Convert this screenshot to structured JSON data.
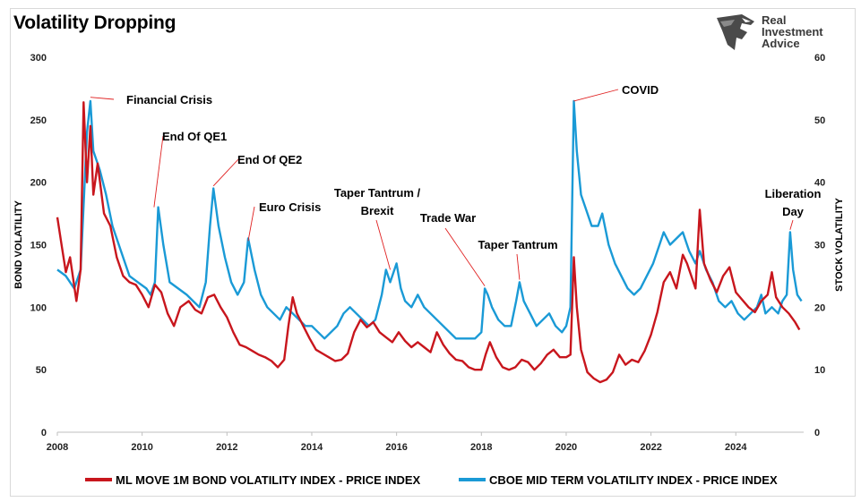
{
  "title": "Volatility Dropping",
  "brand": {
    "line1": "Real",
    "line2": "Investment",
    "line3": "Advice",
    "logo_icon": "eagle-head-icon"
  },
  "colors": {
    "bond": "#c8161d",
    "stock": "#1a9ad6"
  },
  "chart_data": {
    "type": "line",
    "title": "Volatility Dropping",
    "xlabel": "",
    "ylabel": "BOND VOLATILITY",
    "y2label": "STOCK VOLATILITY",
    "xlim": [
      2008,
      2025.6
    ],
    "ylim": [
      0,
      300
    ],
    "y2lim": [
      0,
      60
    ],
    "x_ticks": [
      "2008",
      "2010",
      "2012",
      "2014",
      "2016",
      "2018",
      "2020",
      "2022",
      "2024"
    ],
    "y_ticks": [
      "0",
      "50",
      "100",
      "150",
      "200",
      "250",
      "300"
    ],
    "y2_ticks": [
      "0",
      "10",
      "20",
      "30",
      "40",
      "50",
      "60"
    ],
    "grid": false,
    "legend_position": "bottom",
    "series": [
      {
        "name": "ML MOVE 1M BOND VOLATILITY INDEX - PRICE INDEX",
        "axis": "left",
        "color": "#c8161d",
        "points": [
          [
            2008.0,
            172
          ],
          [
            2008.1,
            150
          ],
          [
            2008.2,
            128
          ],
          [
            2008.3,
            140
          ],
          [
            2008.45,
            105
          ],
          [
            2008.55,
            130
          ],
          [
            2008.62,
            264
          ],
          [
            2008.7,
            200
          ],
          [
            2008.78,
            245
          ],
          [
            2008.85,
            190
          ],
          [
            2008.95,
            215
          ],
          [
            2009.1,
            175
          ],
          [
            2009.25,
            165
          ],
          [
            2009.4,
            140
          ],
          [
            2009.55,
            125
          ],
          [
            2009.7,
            120
          ],
          [
            2009.85,
            118
          ],
          [
            2010.0,
            110
          ],
          [
            2010.15,
            100
          ],
          [
            2010.3,
            118
          ],
          [
            2010.45,
            112
          ],
          [
            2010.6,
            95
          ],
          [
            2010.75,
            85
          ],
          [
            2010.9,
            100
          ],
          [
            2011.1,
            105
          ],
          [
            2011.25,
            98
          ],
          [
            2011.4,
            95
          ],
          [
            2011.55,
            108
          ],
          [
            2011.7,
            110
          ],
          [
            2011.85,
            100
          ],
          [
            2012.0,
            92
          ],
          [
            2012.15,
            80
          ],
          [
            2012.3,
            70
          ],
          [
            2012.45,
            68
          ],
          [
            2012.6,
            65
          ],
          [
            2012.75,
            62
          ],
          [
            2012.9,
            60
          ],
          [
            2013.05,
            57
          ],
          [
            2013.2,
            52
          ],
          [
            2013.35,
            58
          ],
          [
            2013.45,
            85
          ],
          [
            2013.55,
            108
          ],
          [
            2013.65,
            95
          ],
          [
            2013.8,
            85
          ],
          [
            2013.95,
            75
          ],
          [
            2014.1,
            66
          ],
          [
            2014.25,
            63
          ],
          [
            2014.4,
            60
          ],
          [
            2014.55,
            57
          ],
          [
            2014.7,
            58
          ],
          [
            2014.85,
            63
          ],
          [
            2015.0,
            80
          ],
          [
            2015.15,
            90
          ],
          [
            2015.3,
            84
          ],
          [
            2015.45,
            88
          ],
          [
            2015.6,
            80
          ],
          [
            2015.75,
            76
          ],
          [
            2015.9,
            72
          ],
          [
            2016.05,
            80
          ],
          [
            2016.2,
            73
          ],
          [
            2016.35,
            68
          ],
          [
            2016.5,
            72
          ],
          [
            2016.65,
            68
          ],
          [
            2016.8,
            64
          ],
          [
            2016.95,
            80
          ],
          [
            2017.1,
            70
          ],
          [
            2017.25,
            63
          ],
          [
            2017.4,
            58
          ],
          [
            2017.55,
            57
          ],
          [
            2017.7,
            52
          ],
          [
            2017.85,
            50
          ],
          [
            2018.0,
            50
          ],
          [
            2018.1,
            62
          ],
          [
            2018.2,
            72
          ],
          [
            2018.35,
            60
          ],
          [
            2018.5,
            52
          ],
          [
            2018.65,
            50
          ],
          [
            2018.8,
            52
          ],
          [
            2018.95,
            58
          ],
          [
            2019.1,
            56
          ],
          [
            2019.25,
            50
          ],
          [
            2019.4,
            55
          ],
          [
            2019.55,
            62
          ],
          [
            2019.7,
            66
          ],
          [
            2019.85,
            60
          ],
          [
            2020.0,
            60
          ],
          [
            2020.1,
            62
          ],
          [
            2020.18,
            140
          ],
          [
            2020.25,
            100
          ],
          [
            2020.35,
            66
          ],
          [
            2020.5,
            48
          ],
          [
            2020.65,
            43
          ],
          [
            2020.8,
            40
          ],
          [
            2020.95,
            42
          ],
          [
            2021.1,
            48
          ],
          [
            2021.25,
            62
          ],
          [
            2021.4,
            54
          ],
          [
            2021.55,
            58
          ],
          [
            2021.7,
            56
          ],
          [
            2021.85,
            65
          ],
          [
            2022.0,
            78
          ],
          [
            2022.15,
            96
          ],
          [
            2022.3,
            120
          ],
          [
            2022.45,
            128
          ],
          [
            2022.6,
            115
          ],
          [
            2022.75,
            142
          ],
          [
            2022.85,
            135
          ],
          [
            2022.95,
            125
          ],
          [
            2023.05,
            115
          ],
          [
            2023.15,
            178
          ],
          [
            2023.25,
            135
          ],
          [
            2023.4,
            122
          ],
          [
            2023.55,
            112
          ],
          [
            2023.7,
            125
          ],
          [
            2023.85,
            132
          ],
          [
            2024.0,
            112
          ],
          [
            2024.15,
            106
          ],
          [
            2024.3,
            100
          ],
          [
            2024.45,
            96
          ],
          [
            2024.6,
            105
          ],
          [
            2024.75,
            110
          ],
          [
            2024.85,
            128
          ],
          [
            2024.95,
            108
          ],
          [
            2025.1,
            100
          ],
          [
            2025.25,
            95
          ],
          [
            2025.4,
            88
          ],
          [
            2025.5,
            82
          ]
        ]
      },
      {
        "name": "CBOE MID TERM VOLATILITY INDEX - PRICE INDEX",
        "axis": "right",
        "color": "#1a9ad6",
        "points": [
          [
            2008.0,
            26
          ],
          [
            2008.2,
            25
          ],
          [
            2008.4,
            23
          ],
          [
            2008.55,
            26
          ],
          [
            2008.7,
            48
          ],
          [
            2008.78,
            53
          ],
          [
            2008.85,
            45
          ],
          [
            2009.0,
            42
          ],
          [
            2009.15,
            38
          ],
          [
            2009.3,
            33
          ],
          [
            2009.5,
            29
          ],
          [
            2009.7,
            25
          ],
          [
            2009.9,
            24
          ],
          [
            2010.1,
            23
          ],
          [
            2010.2,
            22
          ],
          [
            2010.3,
            24
          ],
          [
            2010.38,
            36
          ],
          [
            2010.5,
            30
          ],
          [
            2010.65,
            24
          ],
          [
            2010.85,
            23
          ],
          [
            2011.05,
            22
          ],
          [
            2011.2,
            21
          ],
          [
            2011.35,
            20
          ],
          [
            2011.5,
            24
          ],
          [
            2011.6,
            33
          ],
          [
            2011.68,
            39
          ],
          [
            2011.8,
            33
          ],
          [
            2011.95,
            28
          ],
          [
            2012.1,
            24
          ],
          [
            2012.25,
            22
          ],
          [
            2012.4,
            24
          ],
          [
            2012.5,
            31
          ],
          [
            2012.65,
            26
          ],
          [
            2012.8,
            22
          ],
          [
            2012.95,
            20
          ],
          [
            2013.1,
            19
          ],
          [
            2013.25,
            18
          ],
          [
            2013.4,
            20
          ],
          [
            2013.55,
            19
          ],
          [
            2013.7,
            18
          ],
          [
            2013.85,
            17
          ],
          [
            2014.0,
            17
          ],
          [
            2014.15,
            16
          ],
          [
            2014.3,
            15
          ],
          [
            2014.45,
            16
          ],
          [
            2014.6,
            17
          ],
          [
            2014.75,
            19
          ],
          [
            2014.9,
            20
          ],
          [
            2015.05,
            19
          ],
          [
            2015.2,
            18
          ],
          [
            2015.35,
            17
          ],
          [
            2015.5,
            18
          ],
          [
            2015.65,
            22
          ],
          [
            2015.75,
            26
          ],
          [
            2015.85,
            24
          ],
          [
            2016.0,
            27
          ],
          [
            2016.1,
            23
          ],
          [
            2016.2,
            21
          ],
          [
            2016.35,
            20
          ],
          [
            2016.5,
            22
          ],
          [
            2016.65,
            20
          ],
          [
            2016.8,
            19
          ],
          [
            2016.95,
            18
          ],
          [
            2017.1,
            17
          ],
          [
            2017.25,
            16
          ],
          [
            2017.4,
            15
          ],
          [
            2017.55,
            15
          ],
          [
            2017.7,
            15
          ],
          [
            2017.85,
            15
          ],
          [
            2018.0,
            16
          ],
          [
            2018.08,
            23
          ],
          [
            2018.15,
            22
          ],
          [
            2018.25,
            20
          ],
          [
            2018.4,
            18
          ],
          [
            2018.55,
            17
          ],
          [
            2018.7,
            17
          ],
          [
            2018.82,
            21
          ],
          [
            2018.9,
            24
          ],
          [
            2019.0,
            21
          ],
          [
            2019.15,
            19
          ],
          [
            2019.3,
            17
          ],
          [
            2019.45,
            18
          ],
          [
            2019.6,
            19
          ],
          [
            2019.75,
            17
          ],
          [
            2019.9,
            16
          ],
          [
            2020.0,
            17
          ],
          [
            2020.1,
            20
          ],
          [
            2020.18,
            53
          ],
          [
            2020.25,
            45
          ],
          [
            2020.35,
            38
          ],
          [
            2020.45,
            36
          ],
          [
            2020.6,
            33
          ],
          [
            2020.75,
            33
          ],
          [
            2020.85,
            35
          ],
          [
            2021.0,
            30
          ],
          [
            2021.15,
            27
          ],
          [
            2021.3,
            25
          ],
          [
            2021.45,
            23
          ],
          [
            2021.6,
            22
          ],
          [
            2021.75,
            23
          ],
          [
            2021.9,
            25
          ],
          [
            2022.05,
            27
          ],
          [
            2022.2,
            30
          ],
          [
            2022.3,
            32
          ],
          [
            2022.45,
            30
          ],
          [
            2022.6,
            31
          ],
          [
            2022.75,
            32
          ],
          [
            2022.9,
            29
          ],
          [
            2023.05,
            27
          ],
          [
            2023.15,
            29
          ],
          [
            2023.3,
            26
          ],
          [
            2023.45,
            24
          ],
          [
            2023.6,
            21
          ],
          [
            2023.75,
            20
          ],
          [
            2023.9,
            21
          ],
          [
            2024.05,
            19
          ],
          [
            2024.2,
            18
          ],
          [
            2024.35,
            19
          ],
          [
            2024.5,
            20
          ],
          [
            2024.6,
            22
          ],
          [
            2024.7,
            19
          ],
          [
            2024.85,
            20
          ],
          [
            2025.0,
            19
          ],
          [
            2025.1,
            21
          ],
          [
            2025.2,
            22
          ],
          [
            2025.28,
            32
          ],
          [
            2025.35,
            26
          ],
          [
            2025.45,
            22
          ],
          [
            2025.55,
            21
          ]
        ]
      }
    ],
    "annotations": [
      {
        "lines": [
          "Financial Crisis"
        ],
        "x": 2008.78,
        "y": 268
      },
      {
        "lines": [
          "End Of QE1"
        ],
        "x": 2010.28,
        "y": 180
      },
      {
        "lines": [
          "End Of QE2"
        ],
        "x": 2011.68,
        "y": 197
      },
      {
        "lines": [
          "Euro Crisis"
        ],
        "x": 2012.5,
        "y": 153
      },
      {
        "lines": [
          "Taper Tantrum /",
          "Brexit"
        ],
        "x": 2015.85,
        "y": 130
      },
      {
        "lines": [
          "Trade War"
        ],
        "x": 2018.08,
        "y": 117
      },
      {
        "lines": [
          "Taper Tantrum"
        ],
        "x": 2018.9,
        "y": 122
      },
      {
        "lines": [
          "COVID"
        ],
        "x": 2020.18,
        "y": 265
      },
      {
        "lines": [
          "Liberation",
          "Day"
        ],
        "x": 2025.28,
        "y": 162
      }
    ]
  }
}
